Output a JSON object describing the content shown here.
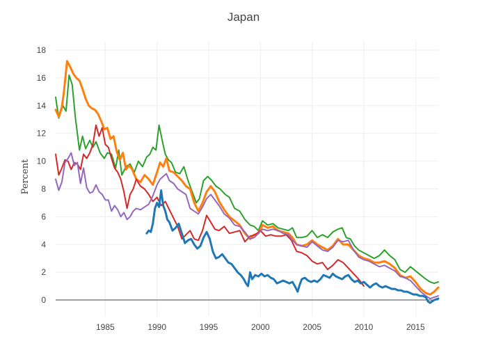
{
  "chart_data": {
    "type": "line",
    "title": "Japan",
    "xlabel": "",
    "ylabel": "Percent",
    "xlim": [
      1980.2,
      2017.2
    ],
    "ylim": [
      -1.2,
      18.6
    ],
    "x_ticks": [
      1985,
      1990,
      1995,
      2000,
      2005,
      2010,
      2015
    ],
    "y_ticks": [
      0,
      2,
      4,
      6,
      8,
      10,
      12,
      14,
      16,
      18
    ],
    "grid": true,
    "legend": "none",
    "zero_line": true,
    "colors": [
      "#1f77b4",
      "#ff7f0e",
      "#2ca02c",
      "#d62728",
      "#9467bd"
    ],
    "series": [
      {
        "color": "#2ca02c",
        "x": [
          1980.2,
          1980.5,
          1980.9,
          1981.2,
          1981.5,
          1981.8,
          1982.1,
          1982.5,
          1982.8,
          1983.1,
          1983.5,
          1983.8,
          1984.1,
          1984.5,
          1984.9,
          1985.2,
          1985.6,
          1986.0,
          1986.3,
          1986.6,
          1987.0,
          1987.4,
          1987.8,
          1988.2,
          1988.6,
          1989.0,
          1989.3,
          1989.6,
          1989.9,
          1990.2,
          1990.5,
          1990.8,
          1991.1,
          1991.4,
          1991.8,
          1992.2,
          1992.6,
          1993.0,
          1993.4,
          1993.8,
          1994.1,
          1994.5,
          1994.9,
          1995.3,
          1995.7,
          1996.1,
          1996.6,
          1997.0,
          1997.5,
          1998.0,
          1998.5,
          1999.0,
          1999.4,
          1999.8,
          2000.2,
          2000.7,
          2001.2,
          2001.7,
          2002.2,
          2002.7,
          2003.1,
          2003.5,
          2004.0,
          2004.5,
          2005.0,
          2005.5,
          2006.0,
          2006.5,
          2007.0,
          2007.5,
          2007.9,
          2008.3,
          2008.7,
          2009.1,
          2009.5,
          2010.0,
          2010.5,
          2011.0,
          2011.5,
          2012.0,
          2012.5,
          2013.0,
          2013.5,
          2014.0,
          2014.5,
          2015.0,
          2015.5,
          2016.0,
          2016.4,
          2016.8,
          2017.2
        ],
        "values": [
          14.6,
          13.1,
          14.0,
          13.6,
          16.2,
          15.5,
          13.2,
          10.8,
          11.8,
          10.9,
          11.5,
          11.0,
          11.4,
          10.6,
          10.2,
          10.6,
          10.5,
          9.5,
          10.8,
          9.0,
          9.6,
          9.8,
          9.2,
          10.0,
          9.6,
          10.3,
          10.5,
          11.0,
          10.8,
          12.6,
          11.5,
          10.5,
          10.1,
          9.9,
          9.2,
          9.1,
          9.6,
          8.6,
          7.8,
          7.0,
          7.3,
          8.6,
          8.9,
          8.6,
          8.2,
          8.0,
          7.6,
          7.4,
          6.6,
          6.4,
          5.8,
          5.4,
          5.3,
          5.0,
          5.7,
          5.4,
          5.5,
          5.2,
          5.1,
          5.0,
          5.2,
          4.5,
          4.5,
          4.6,
          5.0,
          4.5,
          4.7,
          4.5,
          4.9,
          5.1,
          5.2,
          4.5,
          4.4,
          3.9,
          3.6,
          3.4,
          3.2,
          3.0,
          3.2,
          3.6,
          3.2,
          2.9,
          2.2,
          2.0,
          2.4,
          2.1,
          1.8,
          1.5,
          1.3,
          1.2,
          1.3
        ]
      },
      {
        "color": "#ff7f0e",
        "x": [
          1980.2,
          1980.5,
          1980.8,
          1981.0,
          1981.3,
          1981.6,
          1981.9,
          1982.2,
          1982.5,
          1982.8,
          1983.1,
          1983.4,
          1983.7,
          1984.0,
          1984.3,
          1984.6,
          1984.9,
          1985.2,
          1985.5,
          1985.8,
          1986.1,
          1986.4,
          1986.7,
          1987.0,
          1987.3,
          1987.6,
          1988.0,
          1988.4,
          1988.8,
          1989.2,
          1989.6,
          1990.0,
          1990.3,
          1990.6,
          1990.9,
          1991.2,
          1991.6,
          1992.0,
          1992.4,
          1992.8,
          1993.2,
          1993.6,
          1994.0,
          1994.4,
          1994.8,
          1995.2,
          1995.6,
          1996.0,
          1996.5,
          1997.0,
          1997.5,
          1998.0,
          1998.5,
          1999.0,
          1999.4,
          1999.8,
          2000.2,
          2000.7,
          2001.2,
          2001.7,
          2002.2,
          2002.7,
          2003.1,
          2003.5,
          2004.0,
          2004.5,
          2005.0,
          2005.5,
          2006.0,
          2006.5,
          2007.0,
          2007.5,
          2008.0,
          2008.5,
          2009.0,
          2009.5,
          2010.0,
          2010.5,
          2011.0,
          2011.5,
          2012.0,
          2012.5,
          2013.0,
          2013.5,
          2014.0,
          2014.5,
          2015.0,
          2015.5,
          2016.0,
          2016.4,
          2016.8,
          2017.2
        ],
        "values": [
          13.7,
          13.2,
          13.9,
          15.0,
          17.2,
          16.8,
          16.3,
          16.0,
          15.8,
          15.2,
          14.5,
          14.0,
          13.8,
          13.7,
          13.4,
          12.9,
          12.3,
          12.4,
          11.6,
          11.8,
          10.7,
          10.1,
          10.6,
          9.4,
          9.7,
          9.4,
          8.7,
          8.5,
          9.0,
          8.7,
          8.3,
          9.2,
          9.9,
          9.6,
          10.2,
          9.3,
          9.2,
          8.9,
          8.6,
          8.2,
          8.0,
          7.0,
          6.4,
          7.0,
          7.8,
          8.2,
          7.8,
          7.1,
          6.5,
          6.0,
          5.7,
          5.4,
          4.8,
          4.4,
          4.7,
          4.8,
          5.4,
          5.2,
          5.3,
          5.0,
          4.9,
          4.8,
          4.5,
          4.0,
          3.9,
          4.0,
          4.3,
          4.0,
          3.8,
          3.6,
          3.9,
          4.4,
          4.0,
          4.0,
          3.6,
          3.2,
          3.0,
          2.9,
          2.7,
          2.7,
          2.8,
          2.6,
          2.3,
          1.8,
          1.6,
          1.7,
          1.3,
          0.8,
          0.5,
          0.4,
          0.6,
          0.9
        ]
      },
      {
        "color": "#d62728",
        "x": [
          1980.2,
          1980.5,
          1980.8,
          1981.1,
          1981.4,
          1981.7,
          1982.0,
          1982.3,
          1982.6,
          1982.9,
          1983.2,
          1983.5,
          1983.8,
          1984.1,
          1984.4,
          1984.7,
          1985.0,
          1985.3,
          1985.6,
          1985.9,
          1986.2,
          1986.5,
          1986.8,
          1987.1,
          1987.4,
          1987.7,
          1988.0,
          1988.4,
          1988.8,
          1989.2,
          1989.6,
          1990.0,
          1990.4,
          1990.8,
          1991.2,
          1991.6,
          1992.0,
          1992.4,
          1992.8,
          1993.2,
          1993.6,
          1994.0,
          1994.4,
          1994.8,
          1995.2,
          1995.6,
          1996.0,
          1996.5,
          1997.0,
          1997.5,
          1998.0,
          1998.5,
          1999.0,
          1999.5,
          2000.0,
          2000.5,
          2001.0,
          2001.5,
          2002.0,
          2002.5,
          2003.0,
          2003.5,
          2004.0,
          2004.5,
          2005.0,
          2005.5,
          2006.0,
          2006.5,
          2007.0,
          2007.5,
          2008.0,
          2008.5,
          2009.0,
          2009.5,
          2010.0
        ],
        "values": [
          10.5,
          9.0,
          9.5,
          10.1,
          10.0,
          9.4,
          9.9,
          9.8,
          9.4,
          10.5,
          10.2,
          10.6,
          11.2,
          12.6,
          11.8,
          12.4,
          11.2,
          11.0,
          10.2,
          9.5,
          9.2,
          8.7,
          7.8,
          6.6,
          7.6,
          8.0,
          8.7,
          8.2,
          8.0,
          7.6,
          7.1,
          7.4,
          6.8,
          7.1,
          6.5,
          5.9,
          5.3,
          4.4,
          4.7,
          5.0,
          4.4,
          4.3,
          5.0,
          6.1,
          5.6,
          5.1,
          5.0,
          5.3,
          4.8,
          4.9,
          5.0,
          4.2,
          4.6,
          4.7,
          5.0,
          4.6,
          4.7,
          4.6,
          4.6,
          4.7,
          4.3,
          3.5,
          3.4,
          3.2,
          2.8,
          2.6,
          2.7,
          2.2,
          2.5,
          2.9,
          2.7,
          2.3,
          1.9,
          1.5,
          1.0
        ]
      },
      {
        "color": "#9467bd",
        "x": [
          1980.2,
          1980.5,
          1980.8,
          1981.1,
          1981.4,
          1981.7,
          1982.0,
          1982.3,
          1982.6,
          1982.9,
          1983.2,
          1983.5,
          1983.8,
          1984.1,
          1984.4,
          1984.7,
          1985.0,
          1985.3,
          1985.6,
          1985.9,
          1986.2,
          1986.5,
          1986.8,
          1987.1,
          1987.4,
          1987.7,
          1988.0,
          1988.4,
          1988.8,
          1989.2,
          1989.6,
          1990.0,
          1990.3,
          1990.6,
          1990.9,
          1991.2,
          1991.6,
          1992.0,
          1992.4,
          1992.8,
          1993.2,
          1993.6,
          1994.0,
          1994.4,
          1994.8,
          1995.2,
          1995.6,
          1996.0,
          1996.5,
          1997.0,
          1997.5,
          1998.0,
          1998.5,
          1999.0,
          1999.4,
          1999.8,
          2000.2,
          2000.7,
          2001.2,
          2001.7,
          2002.2,
          2002.7,
          2003.1,
          2003.5,
          2004.0,
          2004.5,
          2005.0,
          2005.5,
          2006.0,
          2006.5,
          2007.0,
          2007.5,
          2008.0,
          2008.5,
          2009.0,
          2009.5,
          2010.0,
          2010.5,
          2011.0,
          2011.5,
          2012.0,
          2012.5,
          2013.0,
          2013.5,
          2014.0,
          2014.5,
          2015.0,
          2015.5,
          2016.0,
          2016.4,
          2016.8,
          2017.2
        ],
        "values": [
          8.7,
          7.9,
          8.5,
          9.9,
          10.2,
          10.6,
          9.7,
          9.9,
          8.4,
          9.5,
          8.1,
          7.7,
          7.8,
          8.3,
          7.8,
          7.6,
          7.2,
          7.2,
          6.4,
          6.8,
          6.5,
          6.0,
          6.3,
          5.8,
          6.0,
          6.4,
          6.6,
          6.5,
          6.7,
          6.9,
          7.5,
          8.3,
          8.7,
          8.9,
          9.1,
          8.6,
          8.4,
          8.0,
          7.8,
          7.6,
          6.6,
          6.4,
          6.2,
          6.7,
          7.3,
          7.6,
          7.2,
          6.8,
          6.2,
          5.9,
          5.4,
          5.3,
          4.9,
          4.4,
          4.5,
          4.8,
          5.1,
          5.0,
          5.1,
          5.0,
          4.8,
          4.7,
          4.3,
          4.0,
          3.9,
          3.8,
          4.2,
          3.9,
          3.6,
          3.5,
          3.8,
          4.3,
          4.2,
          4.3,
          3.6,
          3.1,
          2.9,
          2.8,
          2.6,
          2.4,
          2.5,
          2.3,
          2.1,
          1.7,
          1.6,
          1.4,
          1.0,
          0.6,
          0.3,
          0.1,
          0.2,
          0.3
        ]
      },
      {
        "color": "#1f77b4",
        "x": [
          1989.0,
          1989.2,
          1989.4,
          1989.6,
          1989.8,
          1990.0,
          1990.2,
          1990.4,
          1990.6,
          1990.8,
          1991.0,
          1991.2,
          1991.5,
          1991.8,
          1992.1,
          1992.4,
          1992.7,
          1993.0,
          1993.3,
          1993.6,
          1993.9,
          1994.2,
          1994.5,
          1994.8,
          1995.1,
          1995.4,
          1995.7,
          1996.0,
          1996.3,
          1996.6,
          1996.9,
          1997.2,
          1997.5,
          1997.8,
          1998.1,
          1998.4,
          1998.6,
          1998.8,
          1999.0,
          1999.2,
          1999.5,
          1999.8,
          2000.1,
          2000.4,
          2000.7,
          2001.0,
          2001.3,
          2001.6,
          2001.9,
          2002.2,
          2002.5,
          2002.8,
          2003.1,
          2003.4,
          2003.6,
          2003.8,
          2004.0,
          2004.3,
          2004.6,
          2004.9,
          2005.2,
          2005.5,
          2005.8,
          2006.1,
          2006.4,
          2006.7,
          2007.0,
          2007.3,
          2007.6,
          2007.9,
          2008.2,
          2008.5,
          2008.8,
          2009.1,
          2009.4,
          2009.7,
          2010.0,
          2010.3,
          2010.6,
          2010.9,
          2011.2,
          2011.5,
          2011.8,
          2012.1,
          2012.4,
          2012.7,
          2013.0,
          2013.3,
          2013.6,
          2013.9,
          2014.2,
          2014.5,
          2014.8,
          2015.1,
          2015.4,
          2015.7,
          2016.0,
          2016.2,
          2016.4,
          2016.6,
          2016.8,
          2017.0,
          2017.2
        ],
        "values": [
          4.8,
          5.0,
          4.9,
          5.5,
          6.6,
          7.0,
          6.7,
          7.9,
          6.8,
          6.4,
          5.8,
          5.6,
          5.0,
          5.2,
          5.5,
          4.8,
          4.1,
          4.3,
          4.4,
          4.0,
          3.7,
          3.9,
          4.5,
          4.9,
          4.4,
          3.5,
          3.0,
          3.1,
          3.3,
          3.0,
          2.7,
          2.6,
          2.3,
          2.0,
          1.8,
          1.5,
          1.2,
          1.0,
          2.0,
          1.5,
          1.8,
          1.7,
          1.9,
          1.7,
          1.8,
          1.6,
          1.5,
          1.2,
          1.3,
          1.4,
          1.3,
          1.2,
          1.3,
          0.9,
          0.6,
          1.1,
          1.5,
          1.6,
          1.4,
          1.3,
          1.4,
          1.3,
          1.5,
          1.8,
          1.7,
          1.6,
          1.9,
          1.7,
          1.6,
          1.5,
          1.7,
          1.8,
          1.5,
          1.3,
          1.4,
          1.2,
          1.3,
          1.1,
          0.9,
          1.1,
          1.2,
          1.0,
          0.9,
          1.0,
          0.9,
          0.8,
          0.8,
          0.7,
          0.7,
          0.6,
          0.6,
          0.5,
          0.4,
          0.4,
          0.3,
          0.3,
          0.2,
          -0.1,
          -0.2,
          -0.1,
          0.0,
          0.05,
          0.1
        ]
      }
    ]
  }
}
